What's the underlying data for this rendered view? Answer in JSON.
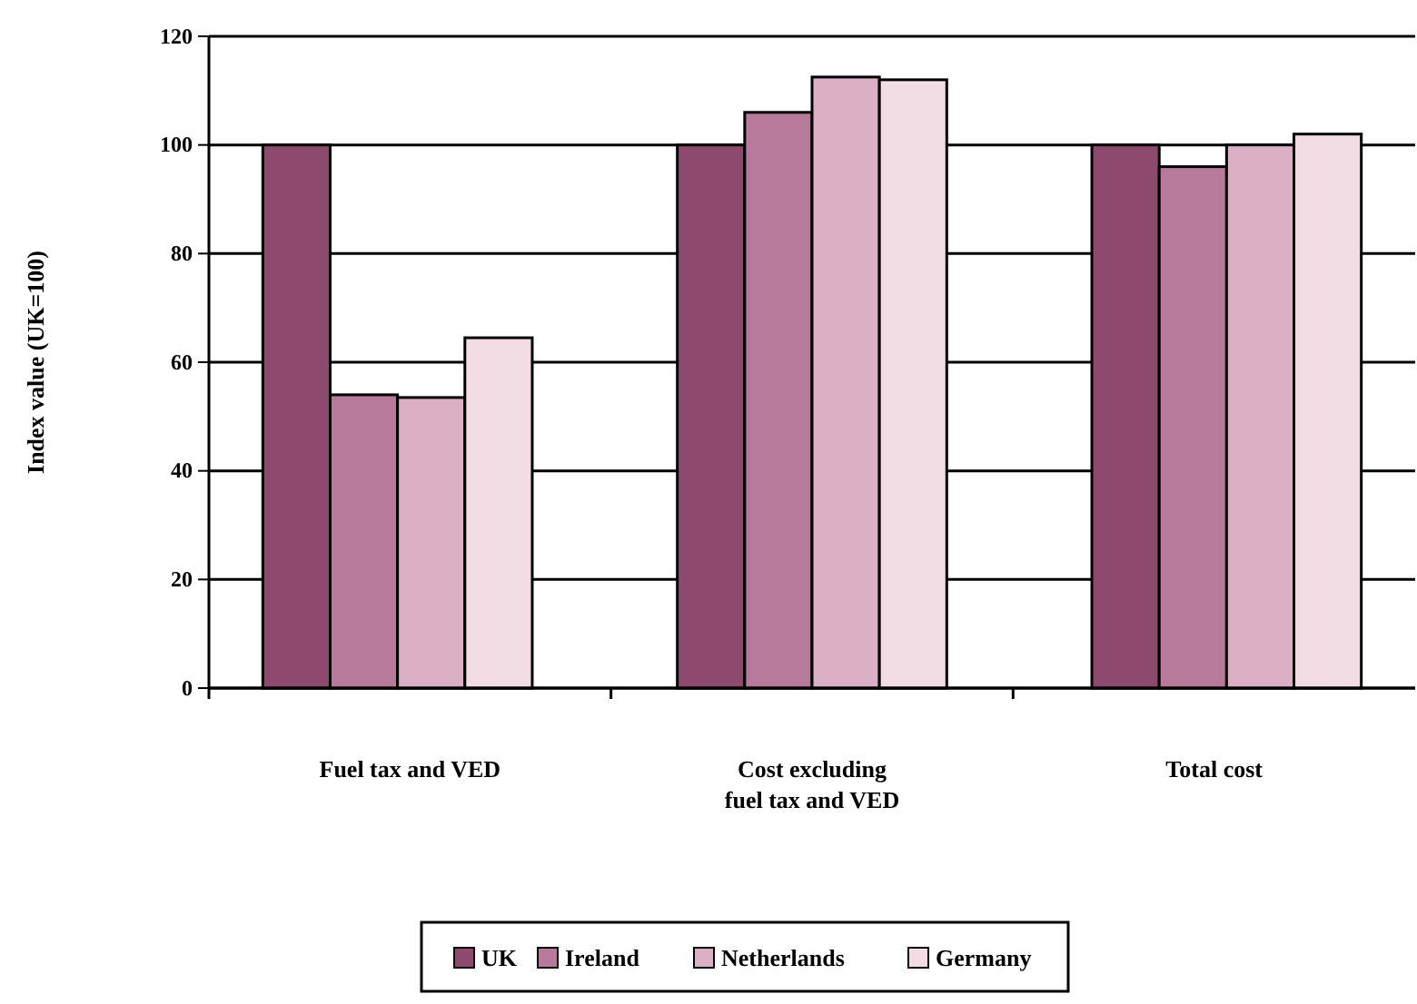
{
  "chart_data": {
    "type": "bar",
    "ylabel": "Index value (UK=100)",
    "categories": [
      "Fuel tax and VED",
      "Cost excluding fuel tax and VED",
      "Total cost"
    ],
    "series": [
      {
        "name": "UK",
        "color": "#8e4a6e",
        "values": [
          100,
          100,
          100
        ]
      },
      {
        "name": "Ireland",
        "color": "#b87a9a",
        "values": [
          54,
          106,
          96
        ]
      },
      {
        "name": "Netherlands",
        "color": "#dcb0c4",
        "values": [
          53.5,
          112.5,
          100
        ]
      },
      {
        "name": "Germany",
        "color": "#f2dde5",
        "values": [
          64.5,
          112,
          102
        ]
      }
    ],
    "ylim": [
      0,
      120
    ],
    "yticks": [
      0,
      20,
      40,
      60,
      80,
      100,
      120
    ],
    "grid": "y",
    "legend": "bottom"
  }
}
